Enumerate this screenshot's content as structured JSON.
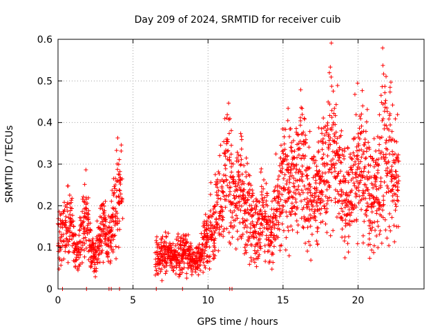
{
  "chart_data": {
    "type": "scatter",
    "title": "Day 209 of 2024, SRMTID for receiver cuib",
    "xlabel": "GPS time / hours",
    "ylabel": "SRMTID / TECUs",
    "xlim": [
      0,
      24.4
    ],
    "ylim": [
      0,
      0.6
    ],
    "xticks": [
      0,
      5,
      10,
      15,
      20
    ],
    "yticks": [
      0,
      0.1,
      0.2,
      0.3,
      0.4,
      0.5,
      0.6
    ],
    "grid": true,
    "marker": "+",
    "color": "#ff0000",
    "point_spacing_hours": 0.05,
    "envelope": [
      {
        "x": 0.0,
        "y": 0.11
      },
      {
        "x": 0.3,
        "y": 0.13
      },
      {
        "x": 0.6,
        "y": 0.15
      },
      {
        "x": 0.9,
        "y": 0.17
      },
      {
        "x": 1.1,
        "y": 0.1
      },
      {
        "x": 1.3,
        "y": 0.08
      },
      {
        "x": 1.6,
        "y": 0.15
      },
      {
        "x": 1.9,
        "y": 0.17
      },
      {
        "x": 2.2,
        "y": 0.09
      },
      {
        "x": 2.5,
        "y": 0.07
      },
      {
        "x": 2.8,
        "y": 0.13
      },
      {
        "x": 3.0,
        "y": 0.17
      },
      {
        "x": 3.3,
        "y": 0.1
      },
      {
        "x": 3.6,
        "y": 0.15
      },
      {
        "x": 3.9,
        "y": 0.21
      },
      {
        "x": 4.2,
        "y": 0.24
      },
      {
        "x": 6.6,
        "y": 0.08
      },
      {
        "x": 7.2,
        "y": 0.09
      },
      {
        "x": 7.8,
        "y": 0.07
      },
      {
        "x": 8.4,
        "y": 0.09
      },
      {
        "x": 9.0,
        "y": 0.06
      },
      {
        "x": 9.5,
        "y": 0.08
      },
      {
        "x": 10.0,
        "y": 0.13
      },
      {
        "x": 10.5,
        "y": 0.17
      },
      {
        "x": 11.0,
        "y": 0.22
      },
      {
        "x": 11.3,
        "y": 0.3
      },
      {
        "x": 11.7,
        "y": 0.22
      },
      {
        "x": 12.2,
        "y": 0.24
      },
      {
        "x": 12.7,
        "y": 0.18
      },
      {
        "x": 13.2,
        "y": 0.14
      },
      {
        "x": 13.7,
        "y": 0.19
      },
      {
        "x": 14.2,
        "y": 0.13
      },
      {
        "x": 14.7,
        "y": 0.22
      },
      {
        "x": 15.2,
        "y": 0.28
      },
      {
        "x": 15.7,
        "y": 0.26
      },
      {
        "x": 16.2,
        "y": 0.3
      },
      {
        "x": 16.7,
        "y": 0.24
      },
      {
        "x": 17.2,
        "y": 0.22
      },
      {
        "x": 17.7,
        "y": 0.28
      },
      {
        "x": 18.2,
        "y": 0.35
      },
      {
        "x": 18.7,
        "y": 0.3
      },
      {
        "x": 19.2,
        "y": 0.2
      },
      {
        "x": 19.7,
        "y": 0.26
      },
      {
        "x": 20.2,
        "y": 0.32
      },
      {
        "x": 20.7,
        "y": 0.26
      },
      {
        "x": 21.2,
        "y": 0.22
      },
      {
        "x": 21.7,
        "y": 0.35
      },
      {
        "x": 22.2,
        "y": 0.3
      },
      {
        "x": 22.7,
        "y": 0.27
      }
    ],
    "gaps": [
      [
        4.3,
        6.5
      ]
    ],
    "markers_at_zero": [
      0.3,
      1.9,
      3.4,
      3.55,
      4.1,
      6.55,
      8.3,
      11.45,
      11.6
    ]
  }
}
